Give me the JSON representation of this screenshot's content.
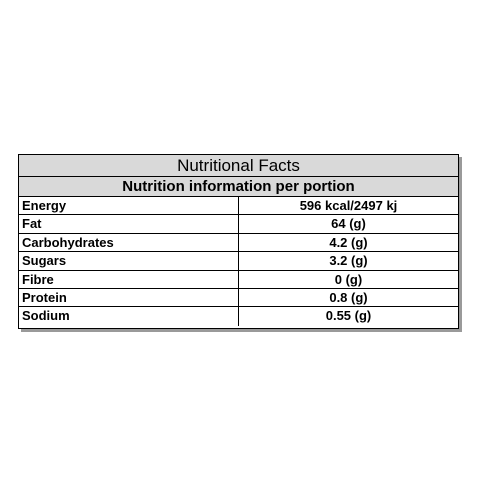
{
  "table": {
    "title": "Nutritional Facts",
    "subtitle": "Nutrition information per portion",
    "rows": [
      {
        "name": "Energy",
        "value": "596 kcal/2497 kj"
      },
      {
        "name": "Fat",
        "value": "64 (g)"
      },
      {
        "name": "Carbohydrates",
        "value": "4.2 (g)"
      },
      {
        "name": "Sugars",
        "value": "3.2 (g)"
      },
      {
        "name": "Fibre",
        "value": "0 (g)"
      },
      {
        "name": "Protein",
        "value": "0.8 (g)"
      },
      {
        "name": "Sodium",
        "value": "0.55 (g)"
      }
    ]
  }
}
